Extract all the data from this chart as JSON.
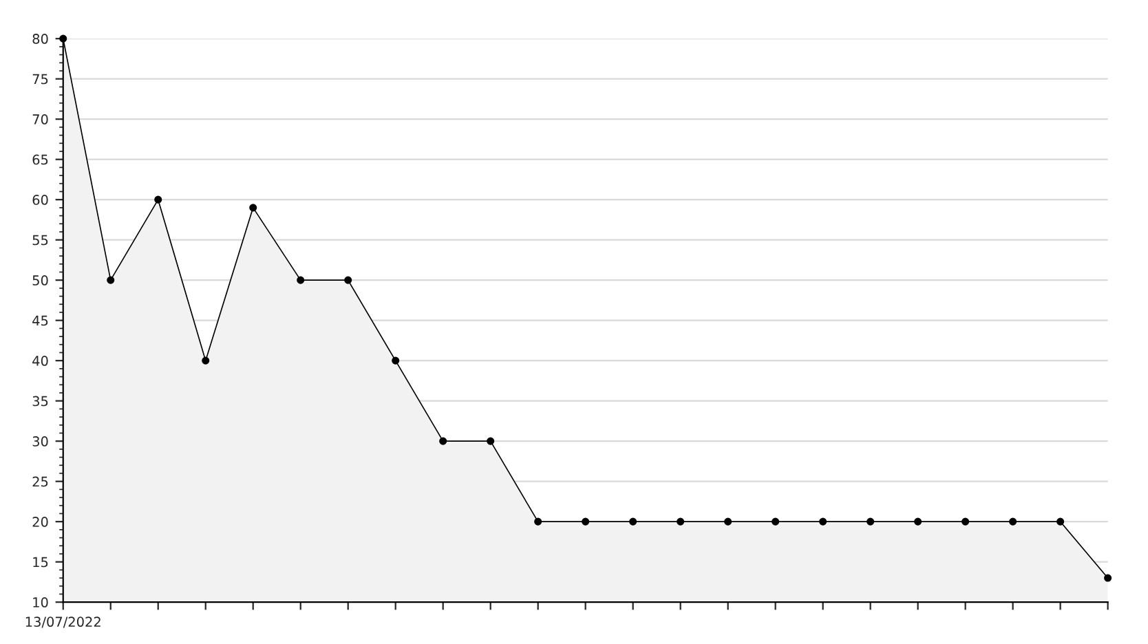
{
  "chart_data": {
    "type": "area",
    "categories": [
      "13/07/2022",
      null,
      null,
      null,
      null,
      null,
      null,
      null,
      null,
      null,
      null,
      null,
      null,
      null,
      null,
      null,
      null,
      null,
      null,
      null,
      null,
      null,
      null
    ],
    "series": [
      {
        "color": "#f2f2f2",
        "values": [
          80,
          50,
          60,
          40,
          59,
          50,
          50,
          40,
          30,
          30,
          20,
          20,
          20,
          20,
          20,
          20,
          20,
          20,
          20,
          20,
          20,
          20,
          13
        ]
      }
    ],
    "ylim": [
      10,
      80
    ],
    "yticks": [
      10,
      15,
      20,
      25,
      30,
      35,
      40,
      45,
      50,
      55,
      60,
      65,
      70,
      75,
      80
    ],
    "grid": "y",
    "marker": "circle",
    "line_style": "solid"
  }
}
